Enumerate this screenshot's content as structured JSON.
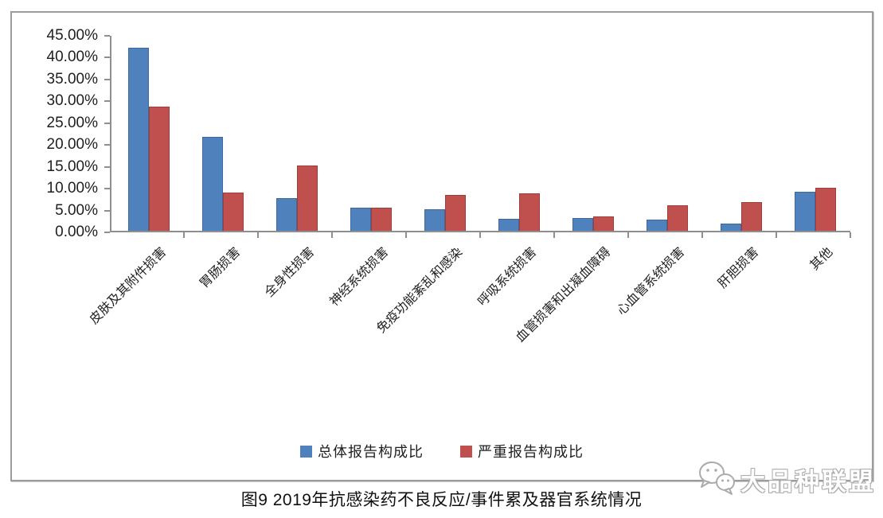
{
  "caption": "图9 2019年抗感染药不良反应/事件累及器官系统情况",
  "watermark": {
    "text": "大品种联盟",
    "icon": "wechat-bubbles-icon"
  },
  "colors": {
    "series_overall": "#4f81bd",
    "series_serious": "#c0504d",
    "frame_border": "#9c9c9c",
    "axis": "#8f8f8f"
  },
  "chart_data": {
    "type": "bar",
    "title": "图9 2019年抗感染药不良反应/事件累及器官系统情况",
    "xlabel": "",
    "ylabel": "",
    "ylim": [
      0,
      45
    ],
    "grid": false,
    "legend_position": "bottom",
    "y_tick_labels": [
      "45.00%",
      "40.00%",
      "35.00%",
      "30.00%",
      "25.00%",
      "20.00%",
      "15.00%",
      "10.00%",
      "5.00%",
      "0.00%"
    ],
    "categories": [
      "皮肤及其附件损害",
      "胃肠损害",
      "全身性损害",
      "神经系统损害",
      "免疫功能紊乱和感染",
      "呼吸系统损害",
      "血管损害和出凝血障碍",
      "心血管系统损害",
      "肝胆损害",
      "其他"
    ],
    "series": [
      {
        "name": "总体报告构成比",
        "color": "#4f81bd",
        "values": [
          41.9,
          21.5,
          7.4,
          5.3,
          4.9,
          2.8,
          2.9,
          2.6,
          1.6,
          9.0
        ]
      },
      {
        "name": "严重报告构成比",
        "color": "#c0504d",
        "values": [
          28.5,
          8.7,
          15.0,
          5.3,
          8.2,
          8.5,
          3.2,
          5.8,
          6.5,
          9.8
        ]
      }
    ]
  }
}
